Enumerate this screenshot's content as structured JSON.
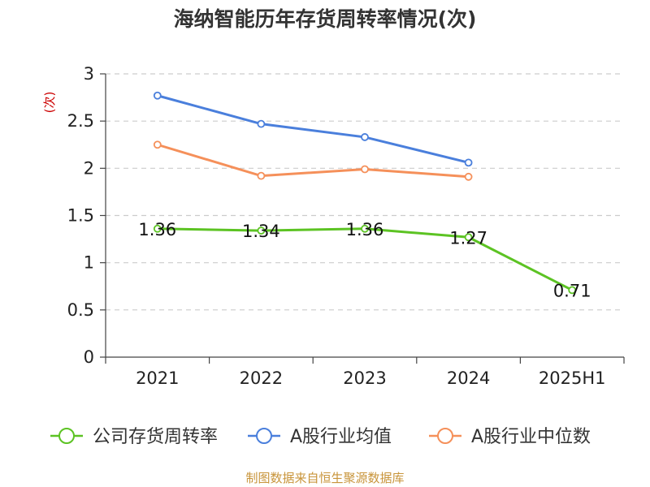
{
  "chart_data": {
    "type": "line",
    "title": "海纳智能历年存货周转率情况(次)",
    "unit_label": "(次)",
    "categories": [
      "2021",
      "2022",
      "2023",
      "2024",
      "2025H1"
    ],
    "ylim": [
      0,
      3
    ],
    "yticks": [
      0,
      0.5,
      1,
      1.5,
      2,
      2.5,
      3
    ],
    "grid": true,
    "legend_position": "bottom",
    "series": [
      {
        "name": "公司存货周转率",
        "color": "#5cc323",
        "values": [
          1.36,
          1.34,
          1.36,
          1.27,
          0.71
        ],
        "labels": [
          "1.36",
          "1.34",
          "1.36",
          "1.27",
          "0.71"
        ]
      },
      {
        "name": "A股行业均值",
        "color": "#4a7fdc",
        "values": [
          2.77,
          2.47,
          2.33,
          2.06,
          null
        ]
      },
      {
        "name": "A股行业中位数",
        "color": "#f5905a",
        "values": [
          2.25,
          1.92,
          1.99,
          1.91,
          null
        ]
      }
    ]
  },
  "source_note": "制图数据来自恒生聚源数据库"
}
